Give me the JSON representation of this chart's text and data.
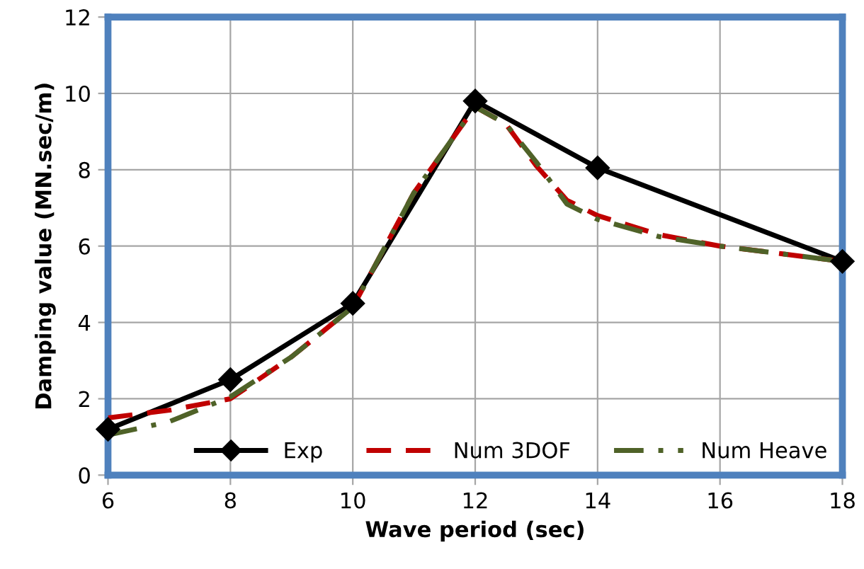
{
  "chart_data": {
    "type": "line",
    "xlabel": "Wave period (sec)",
    "ylabel": "Damping value (MN.sec/m)",
    "xlim": [
      6,
      18
    ],
    "ylim": [
      0,
      12
    ],
    "xticks": [
      6,
      8,
      10,
      12,
      14,
      16,
      18
    ],
    "yticks": [
      0,
      2,
      4,
      6,
      8,
      10,
      12
    ],
    "grid": true,
    "legend": "bottom",
    "series": [
      {
        "name": "Exp",
        "color": "#000000",
        "marker": "diamond",
        "line_style": "solid",
        "x": [
          6,
          8,
          10,
          12,
          14,
          18
        ],
        "values": [
          1.2,
          2.5,
          4.5,
          9.8,
          8.05,
          5.6
        ]
      },
      {
        "name": "Num 3DOF",
        "color": "#c00000",
        "marker": "none",
        "line_style": "dashed",
        "x": [
          6,
          7,
          8,
          9,
          10,
          11,
          12,
          12.5,
          13,
          13.5,
          14,
          15,
          16,
          17,
          18
        ],
        "values": [
          1.5,
          1.7,
          2.0,
          3.1,
          4.4,
          7.4,
          9.65,
          9.2,
          8.1,
          7.2,
          6.8,
          6.3,
          6.0,
          5.8,
          5.6
        ]
      },
      {
        "name": "Num Heave",
        "color": "#4f6228",
        "marker": "none",
        "line_style": "dashdot",
        "x": [
          6,
          7,
          8,
          9,
          10,
          11,
          12,
          12.5,
          13,
          13.5,
          14,
          15,
          16,
          17,
          18
        ],
        "values": [
          1.05,
          1.4,
          2.05,
          3.1,
          4.4,
          7.4,
          9.65,
          9.2,
          8.2,
          7.1,
          6.7,
          6.25,
          6.0,
          5.8,
          5.6
        ]
      }
    ]
  }
}
